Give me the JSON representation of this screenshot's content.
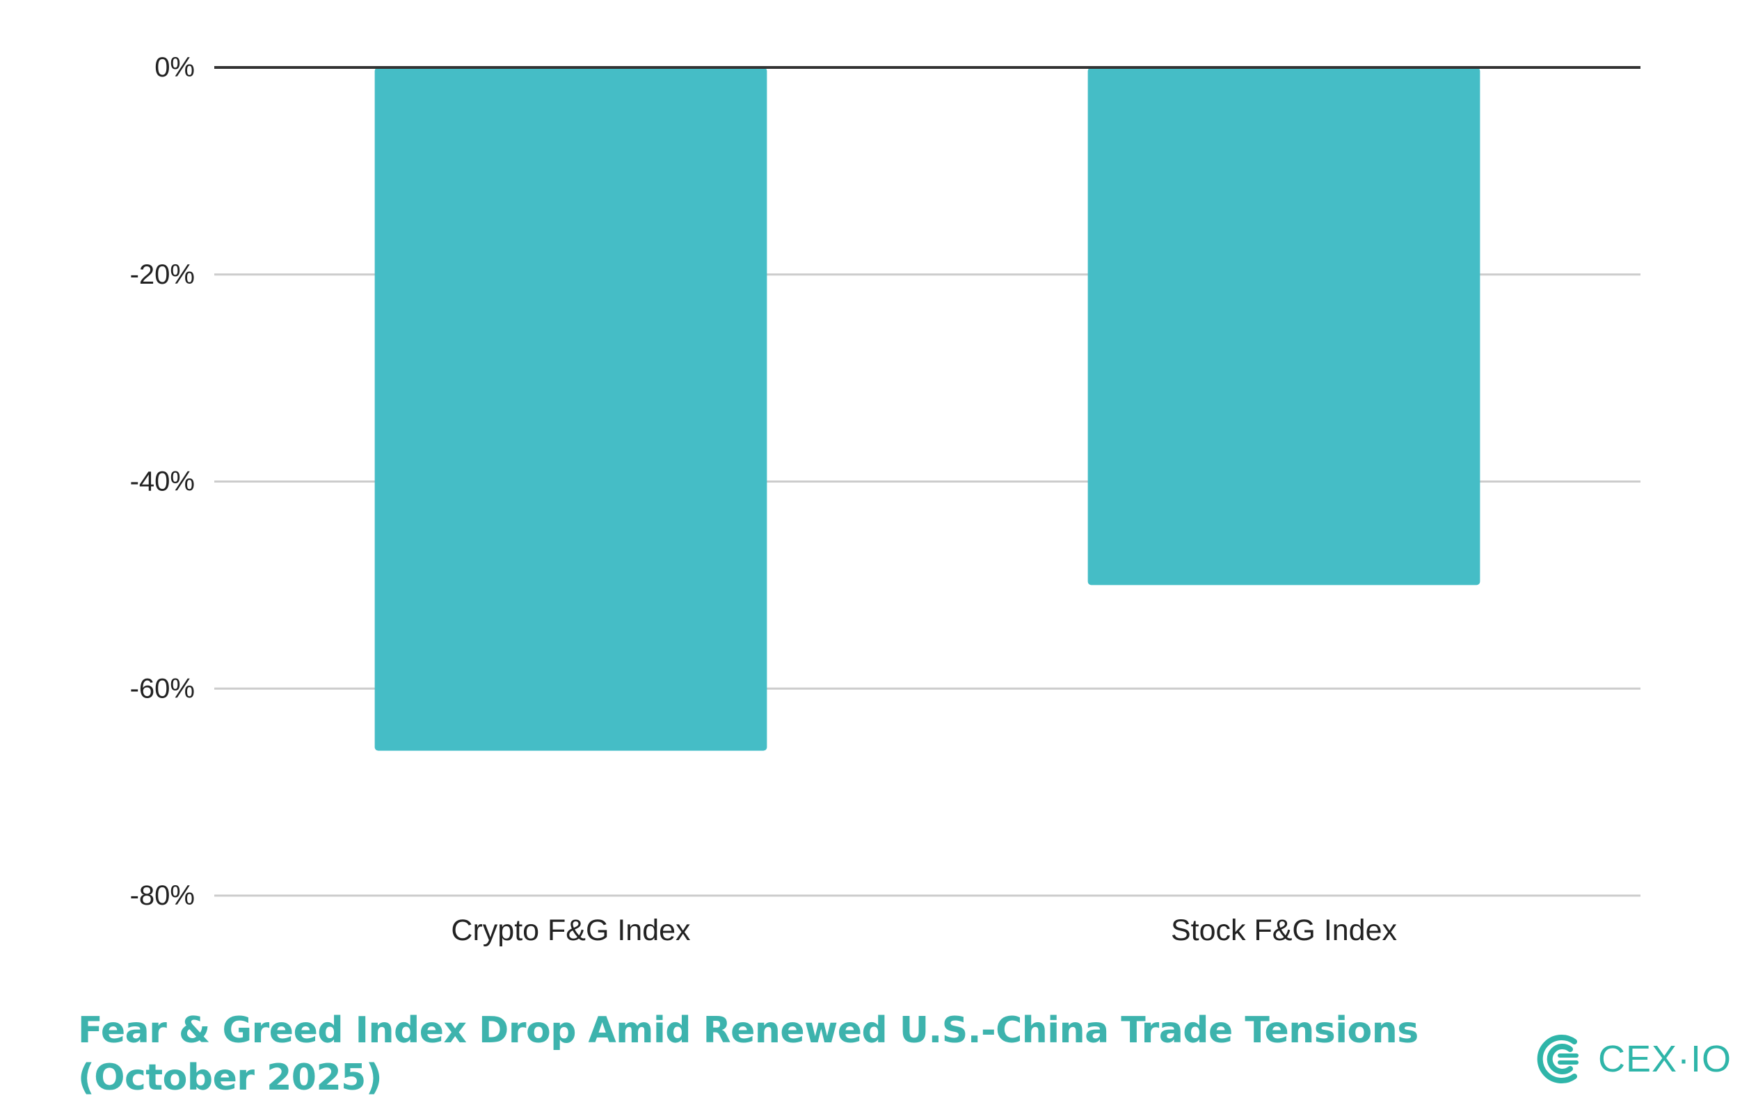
{
  "chart_data": {
    "type": "bar",
    "categories": [
      "Crypto F&G Index",
      "Stock F&G Index"
    ],
    "values": [
      -66,
      -50
    ],
    "ylim": [
      -80,
      0
    ],
    "yticks": [
      0,
      -20,
      -40,
      -60,
      -80
    ],
    "ytick_labels": [
      "0%",
      "-20%",
      "-40%",
      "-60%",
      "-80%"
    ],
    "grid": true,
    "bar_color": "#45BDC6"
  },
  "caption": {
    "line1": "Fear & Greed Index Drop Amid Renewed U.S.-China Trade Tensions",
    "line2": "(October 2025)",
    "color": "#3DB3AD"
  },
  "brand": {
    "name": "CEX·IO",
    "color": "#2FB5A9",
    "icon": "cex-io-logo-icon"
  }
}
